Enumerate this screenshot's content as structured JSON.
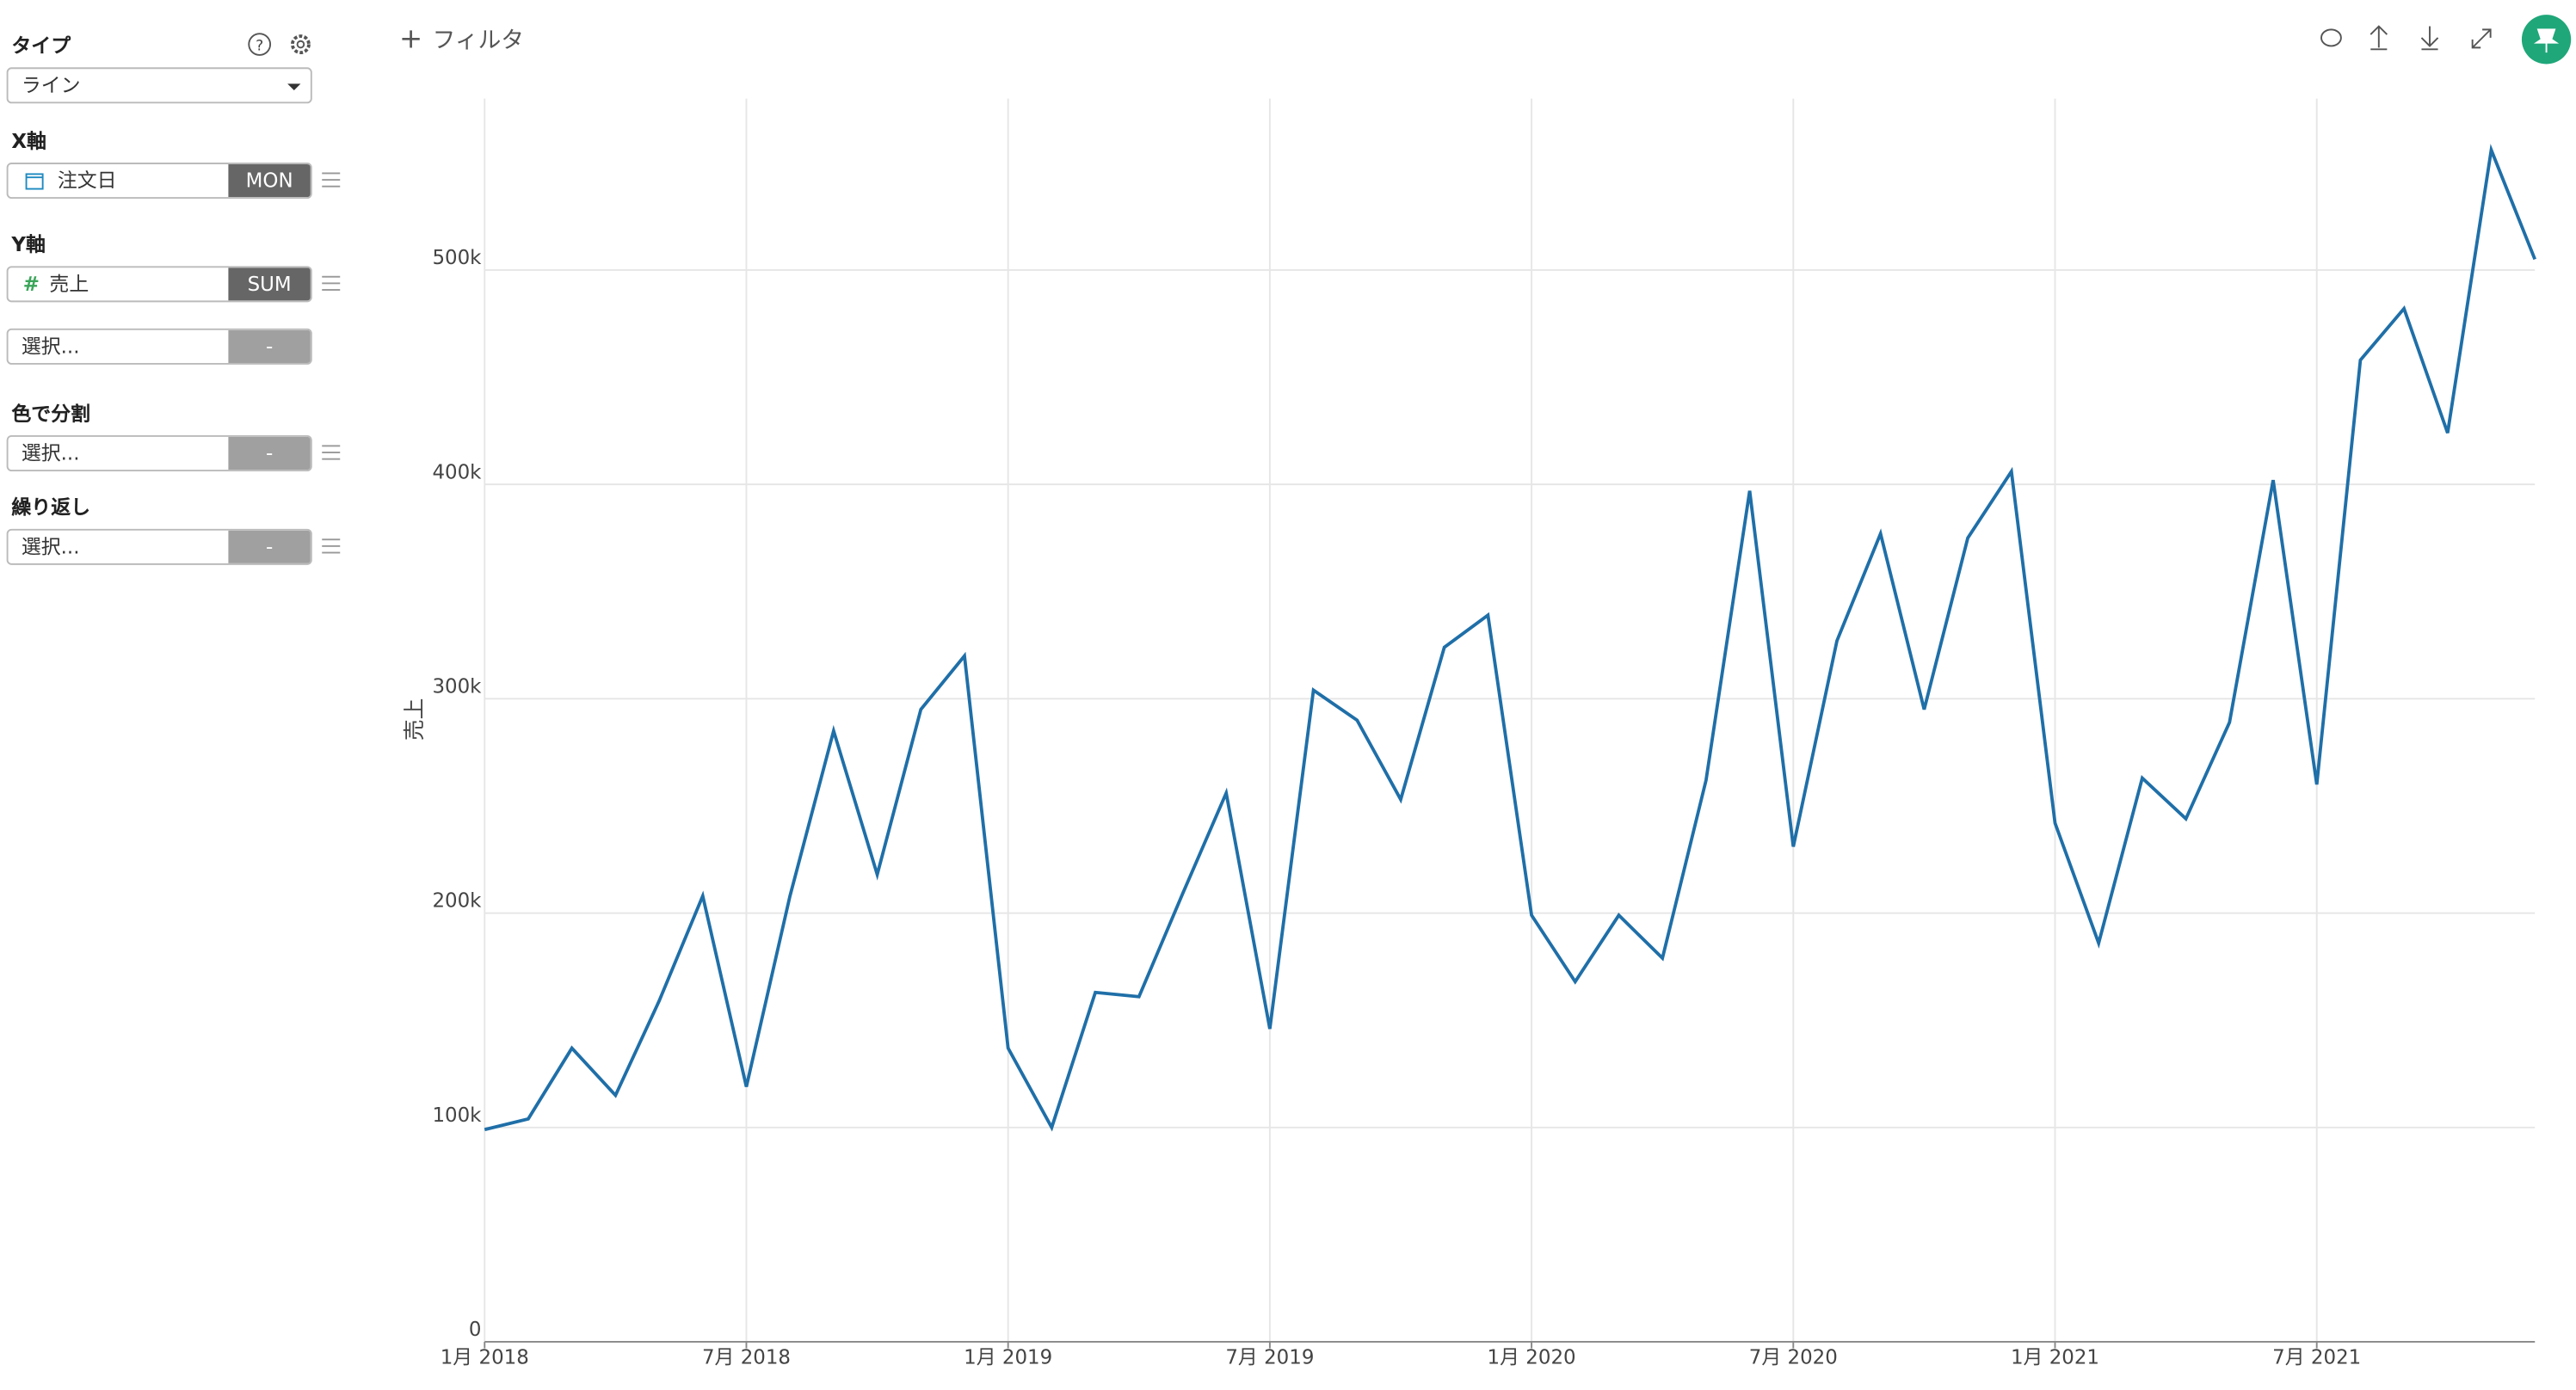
{
  "toolbar": {
    "filter": "フィルタ"
  },
  "sidebar": {
    "type_label": "タイプ",
    "type_value": "ライン",
    "x_label": "X軸",
    "x_field": "注文日",
    "x_agg": "MON",
    "y_label": "Y軸",
    "y_field": "売上",
    "y_agg": "SUM",
    "y2_placeholder": "選択...",
    "y2_agg": "-",
    "color_label": "色で分割",
    "color_placeholder": "選択...",
    "color_agg": "-",
    "repeat_label": "繰り返し",
    "repeat_placeholder": "選択...",
    "repeat_agg": "-"
  },
  "chart_data": {
    "type": "line",
    "y_label": "売上",
    "color": "#1f6fa8",
    "grid": true,
    "x": [
      "2018-01",
      "2018-02",
      "2018-03",
      "2018-04",
      "2018-05",
      "2018-06",
      "2018-07",
      "2018-08",
      "2018-09",
      "2018-10",
      "2018-11",
      "2018-12",
      "2019-01",
      "2019-02",
      "2019-03",
      "2019-04",
      "2019-05",
      "2019-06",
      "2019-07",
      "2019-08",
      "2019-09",
      "2019-10",
      "2019-11",
      "2019-12",
      "2020-01",
      "2020-02",
      "2020-03",
      "2020-04",
      "2020-05",
      "2020-06",
      "2020-07",
      "2020-08",
      "2020-09",
      "2020-10",
      "2020-11",
      "2020-12",
      "2021-01",
      "2021-02",
      "2021-03",
      "2021-04",
      "2021-05",
      "2021-06",
      "2021-07",
      "2021-08",
      "2021-09",
      "2021-10",
      "2021-11",
      "2021-12"
    ],
    "values": [
      99000,
      104000,
      137000,
      115000,
      159000,
      208000,
      119000,
      208000,
      285000,
      218000,
      295000,
      320000,
      137000,
      100000,
      163000,
      161000,
      209000,
      256000,
      146000,
      304000,
      290000,
      253000,
      324000,
      339000,
      199000,
      168000,
      199000,
      179000,
      262000,
      397000,
      231000,
      327000,
      377000,
      295000,
      375000,
      406000,
      242000,
      186000,
      263000,
      244000,
      289000,
      402000,
      260000,
      458000,
      482000,
      424000,
      556000,
      505000
    ],
    "xlim": [
      "2018-01",
      "2021-12"
    ],
    "xticks": [
      {
        "value": "2018-01",
        "label": "1月 2018"
      },
      {
        "value": "2018-07",
        "label": "7月 2018"
      },
      {
        "value": "2019-01",
        "label": "1月 2019"
      },
      {
        "value": "2019-07",
        "label": "7月 2019"
      },
      {
        "value": "2020-01",
        "label": "1月 2020"
      },
      {
        "value": "2020-07",
        "label": "7月 2020"
      },
      {
        "value": "2021-01",
        "label": "1月 2021"
      },
      {
        "value": "2021-07",
        "label": "7月 2021"
      }
    ],
    "ylim": [
      0,
      580000
    ],
    "yticks": [
      0,
      {
        "value": 100000,
        "label": "100k"
      },
      {
        "value": 200000,
        "label": "200k"
      },
      {
        "value": 300000,
        "label": "300k"
      },
      {
        "value": 400000,
        "label": "400k"
      },
      {
        "value": 500000,
        "label": "500k"
      }
    ]
  }
}
